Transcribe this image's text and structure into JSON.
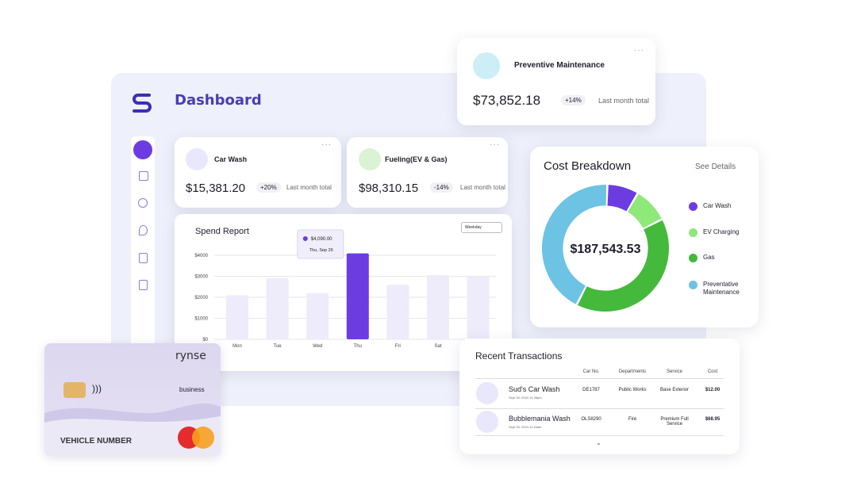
{
  "header": {
    "title": "Dashboard"
  },
  "cards": [
    {
      "title": "Car Wash",
      "amount": "$15,381.20",
      "change": "+20%",
      "note": "Last month total"
    },
    {
      "title": "Fueling(EV & Gas)",
      "amount": "$98,310.15",
      "change": "-14%",
      "note": "Last month total"
    },
    {
      "title": "Preventive Maintenance",
      "amount": "$73,852.18",
      "change": "+14%",
      "note": "Last month total"
    }
  ],
  "chart_data": [
    {
      "type": "bar",
      "title": "Spend Report",
      "filter": "Weekday",
      "categories": [
        "Mon",
        "Tue",
        "Wed",
        "Thu",
        "Fri",
        "Sat",
        null
      ],
      "values": [
        2100,
        2900,
        2200,
        4090,
        2600,
        3050,
        3000
      ],
      "color": "#6c3ce1",
      "muted_color": "#eeebfb",
      "highlight": 3,
      "tooltip": {
        "label": "$4,090.00",
        "date": "Thu, Sep 26"
      },
      "ylim": [
        0,
        4000
      ],
      "yticks": [
        {
          "value": 0,
          "label": "$0"
        },
        {
          "value": 1000,
          "label": "$1000"
        },
        {
          "value": 2000,
          "label": "$2000"
        },
        {
          "value": 3000,
          "label": "$3000"
        },
        {
          "value": 4000,
          "label": "$4000"
        }
      ],
      "grid": true
    },
    {
      "type": "pie",
      "title": "Cost Breakdown",
      "action": "See Details",
      "center_label": "$187,543.53",
      "hole": 0.67,
      "categories": [
        "Car Wash",
        "EV Charging",
        "Gas",
        "Preventative Maintenance"
      ],
      "values": [
        8,
        9,
        40,
        43
      ],
      "colors": [
        "#6c3ce1",
        "#8ee87a",
        "#44b93c",
        "#6cc3e4"
      ]
    }
  ],
  "transactions": {
    "title": "Recent Transactions",
    "columns": [
      "Car No.",
      "Departments",
      "Service",
      "Cost"
    ],
    "rows": [
      {
        "name": "Sud's Car Wash",
        "time": "Sept 30, 2024 14:26pm",
        "car_no": "DE1787",
        "department": "Public Works",
        "service": "Base Exterior",
        "cost": "$12.00"
      },
      {
        "name": "Bubblemania Wash",
        "time": "Sept 30, 2024 11:15am",
        "car_no": "OLS8290",
        "department": "Fire",
        "service": "Premium Full Service",
        "cost": "$68.95"
      }
    ]
  },
  "card": {
    "brand": "rynse",
    "tier": "business",
    "label": "VEHICLE NUMBER"
  }
}
